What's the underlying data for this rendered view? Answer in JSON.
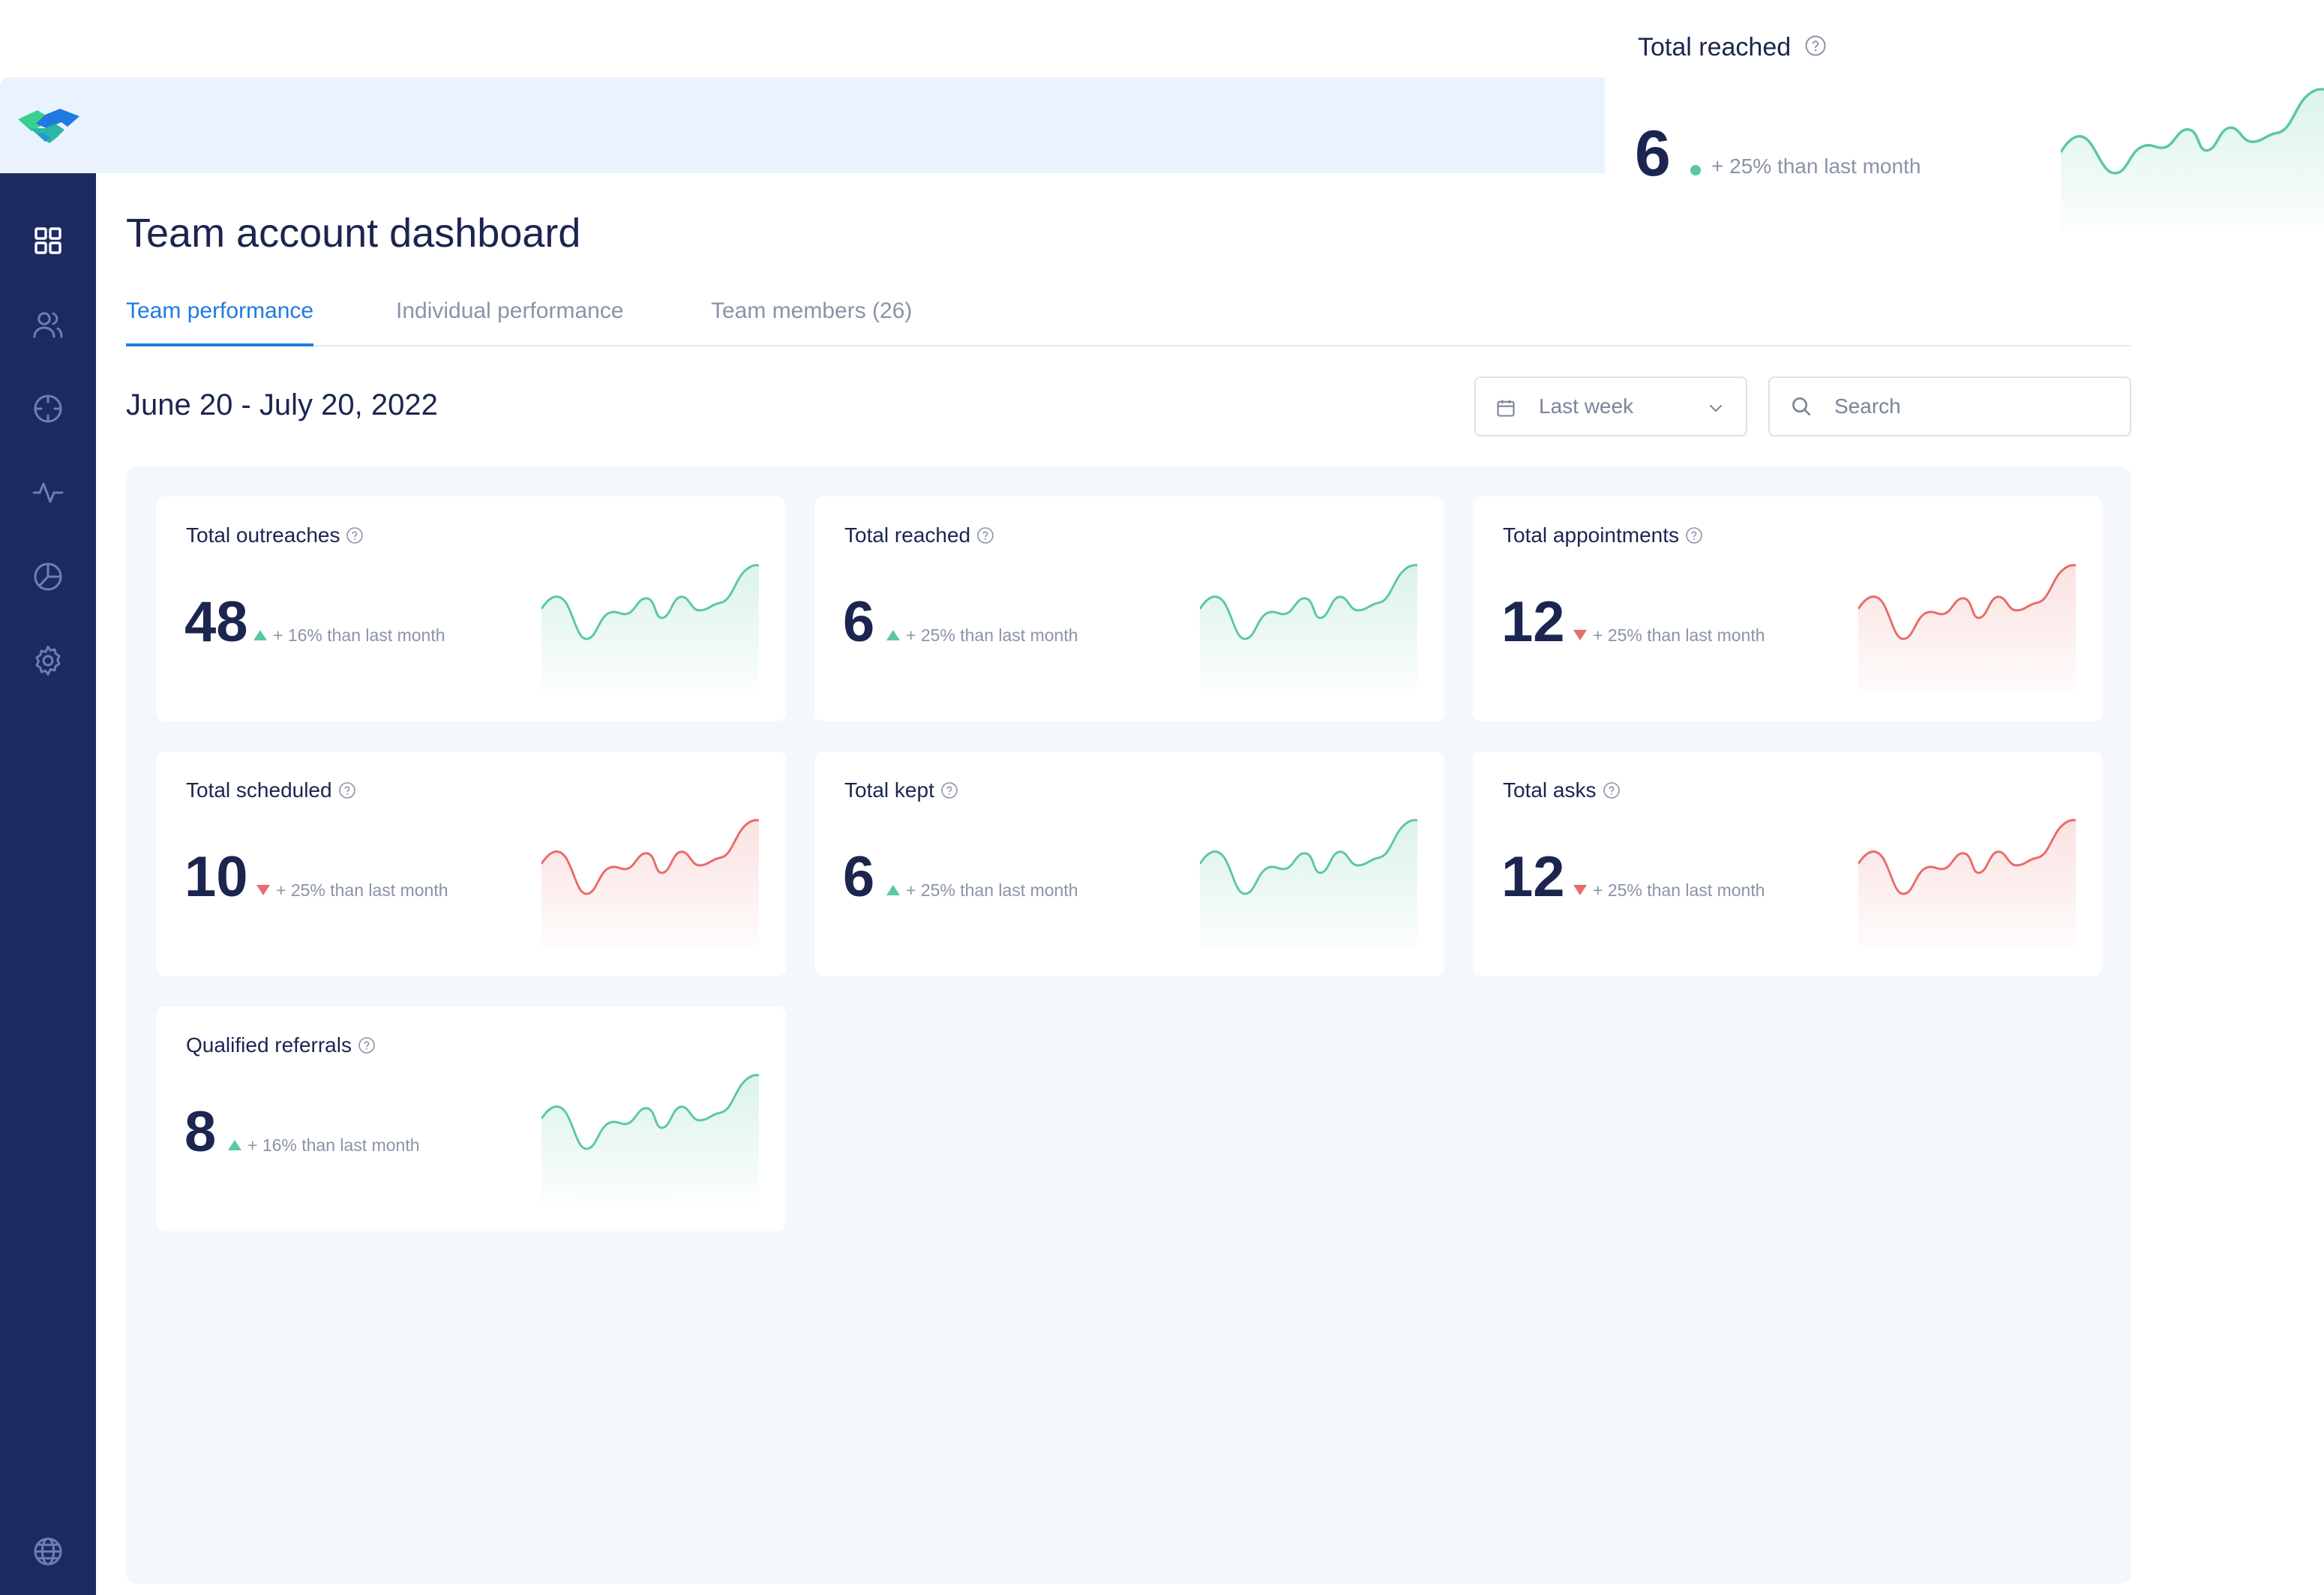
{
  "page_title": "Team account dashboard",
  "tabs": [
    {
      "label": "Team performance",
      "active": true
    },
    {
      "label": "Individual performance",
      "active": false
    },
    {
      "label": "Team members (26)",
      "active": false
    }
  ],
  "date_range": "June 20 - July 20, 2022",
  "filter": {
    "selected": "Last week"
  },
  "search": {
    "placeholder": "Search"
  },
  "sidebar": {
    "items": [
      {
        "icon": "dashboard-grid-icon"
      },
      {
        "icon": "users-icon"
      },
      {
        "icon": "target-icon"
      },
      {
        "icon": "activity-icon"
      },
      {
        "icon": "pie-chart-icon"
      },
      {
        "icon": "settings-gear-icon"
      }
    ],
    "bottom_icon": "globe-icon"
  },
  "colors": {
    "sidebar": "#1b2a63",
    "accent": "#1f7ae0",
    "positive": "#5cc8a1",
    "negative": "#e96b6b",
    "topbar": "#eaf2fd",
    "panel": "#f4f7fc"
  },
  "cards": [
    {
      "title": "Total outreaches",
      "value": "48",
      "trend": "+ 16% than last month",
      "direction": "up"
    },
    {
      "title": "Total reached",
      "value": "6",
      "trend": "+ 25% than last month",
      "direction": "up"
    },
    {
      "title": "Total appointments",
      "value": "12",
      "trend": "+ 25% than last month",
      "direction": "down"
    },
    {
      "title": "Total scheduled",
      "value": "10",
      "trend": "+ 25% than last month",
      "direction": "down"
    },
    {
      "title": "Total kept",
      "value": "6",
      "trend": "+ 25% than last month",
      "direction": "up"
    },
    {
      "title": "Total asks",
      "value": "12",
      "trend": "+ 25% than last month",
      "direction": "down"
    },
    {
      "title": "Qualified referrals",
      "value": "8",
      "trend": "+ 16% than last month",
      "direction": "up"
    }
  ],
  "floating_card": {
    "title": "Total reached",
    "value": "6",
    "trend": "+ 25% than last month",
    "direction": "up"
  }
}
